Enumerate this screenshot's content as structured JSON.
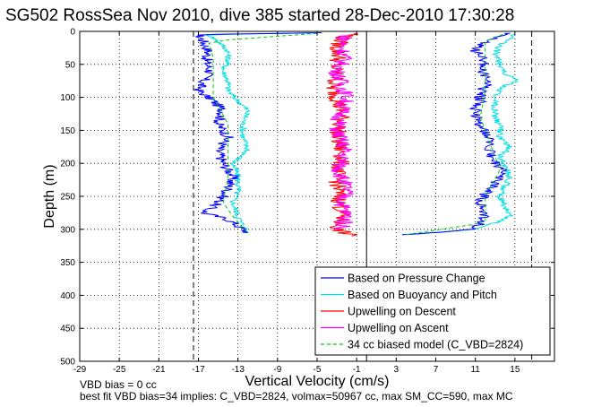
{
  "chart_data": {
    "type": "line",
    "title": "SG502 RossSea Nov 2010, dive 385 started 28-Dec-2010 17:30:28",
    "xlabel": "Vertical Velocity (cm/s)",
    "ylabel": "Depth (m)",
    "xlim": [
      -29,
      19
    ],
    "ylim": [
      0,
      500
    ],
    "y_reversed": true,
    "grid": true,
    "x_ticks": [
      -29,
      -25,
      -21,
      -17,
      -13,
      -9,
      -5,
      -1,
      3,
      7,
      11,
      15
    ],
    "y_ticks": [
      0,
      50,
      100,
      150,
      200,
      250,
      300,
      350,
      400,
      450,
      500
    ],
    "legend_position": "bottom-right",
    "reference_lines": [
      {
        "x": -17.5,
        "style": "dashed"
      },
      {
        "x": 16.7,
        "style": "dashed"
      },
      {
        "x": 0,
        "style": "solid"
      }
    ],
    "series": [
      {
        "name": "Based on Pressure Change",
        "color": "#0000ff",
        "descent": {
          "depth": [
            2,
            5,
            15,
            30,
            45,
            60,
            75,
            90,
            105,
            120,
            140,
            160,
            180,
            200,
            220,
            240,
            260,
            275,
            285,
            295,
            305
          ],
          "velocity": [
            -5,
            -17,
            -16.5,
            -16,
            -16.2,
            -15.8,
            -16.5,
            -17,
            -15.5,
            -14.5,
            -15,
            -14,
            -15,
            -14.5,
            -13.5,
            -14,
            -15,
            -16.5,
            -14,
            -13,
            -12
          ]
        },
        "ascent": {
          "depth": [
            308,
            300,
            290,
            275,
            260,
            245,
            230,
            215,
            200,
            185,
            170,
            155,
            140,
            120,
            105,
            90,
            75,
            60,
            45,
            30,
            15,
            3
          ],
          "velocity": [
            4,
            11,
            11.5,
            12,
            11.5,
            12,
            13,
            14,
            13,
            12.5,
            12.5,
            12,
            11.5,
            11,
            11.5,
            11.5,
            12.5,
            11.5,
            12,
            11,
            12,
            14.5
          ]
        }
      },
      {
        "name": "Based on Buoyancy and Pitch",
        "color": "#00e0e0",
        "descent": {
          "depth": [
            2,
            5,
            15,
            30,
            45,
            60,
            75,
            90,
            105,
            120,
            140,
            160,
            180,
            200,
            220,
            240,
            260,
            280,
            295,
            305
          ],
          "velocity": [
            -5,
            -16,
            -15,
            -14,
            -14,
            -14.5,
            -14,
            -14,
            -13,
            -12,
            -12.5,
            -12.5,
            -12,
            -13.5,
            -13,
            -13,
            -13.5,
            -13,
            -12.5,
            -12
          ]
        },
        "ascent": {
          "depth": [
            308,
            300,
            290,
            280,
            265,
            250,
            235,
            220,
            205,
            190,
            175,
            160,
            145,
            130,
            115,
            100,
            85,
            75,
            65,
            50,
            35,
            20,
            5
          ],
          "velocity": [
            4,
            11,
            13,
            14.5,
            14,
            13.5,
            14,
            14.5,
            14,
            13.5,
            14.5,
            13.5,
            13.5,
            13,
            13,
            13,
            13.5,
            15.5,
            14,
            13.5,
            13,
            13.5,
            15
          ]
        }
      },
      {
        "name": "Upwelling on Descent",
        "color": "#ff0000",
        "profile": {
          "depth": [
            3,
            10,
            25,
            40,
            55,
            70,
            85,
            100,
            130,
            160,
            190,
            220,
            250,
            280,
            300,
            310
          ],
          "velocity": [
            -1,
            -2.5,
            -3,
            -2.8,
            -3.2,
            -3,
            -3.5,
            -3,
            -2.5,
            -3,
            -2.5,
            -3,
            -2.8,
            -2.5,
            -3,
            -1.5
          ]
        }
      },
      {
        "name": "Upwelling on Ascent",
        "color": "#ff00ff",
        "profile": {
          "depth": [
            5,
            20,
            40,
            60,
            80,
            100,
            120,
            150,
            180,
            210,
            240,
            260,
            280,
            300
          ],
          "velocity": [
            -2,
            -2.5,
            -2.2,
            -3,
            -2.5,
            -2,
            -2.5,
            -3,
            -2.2,
            -2.8,
            -2,
            -2.5,
            -2,
            -2.5
          ]
        }
      },
      {
        "name": "34 cc biased model (C_VBD=2824)",
        "color": "#00cc00",
        "style": "dashed",
        "descent": {
          "depth": [
            3,
            15,
            40,
            70,
            100,
            140,
            180,
            220,
            260,
            290,
            305
          ],
          "velocity": [
            -5,
            -16,
            -15.5,
            -15.5,
            -15.5,
            -14,
            -14,
            -14,
            -14.5,
            -13,
            -12
          ]
        },
        "ascent": {
          "depth": [
            308,
            290,
            250,
            210,
            170,
            130,
            90,
            50,
            15,
            3
          ],
          "velocity": [
            4,
            12,
            12,
            13.5,
            12.5,
            11.5,
            12,
            12,
            12,
            14
          ]
        }
      }
    ],
    "annotations": [
      "VBD bias = 0 cc",
      "best fit VBD bias=34 implies: C_VBD=2824, volmax=50967 cc, max SM_CC=590, max MC"
    ]
  }
}
